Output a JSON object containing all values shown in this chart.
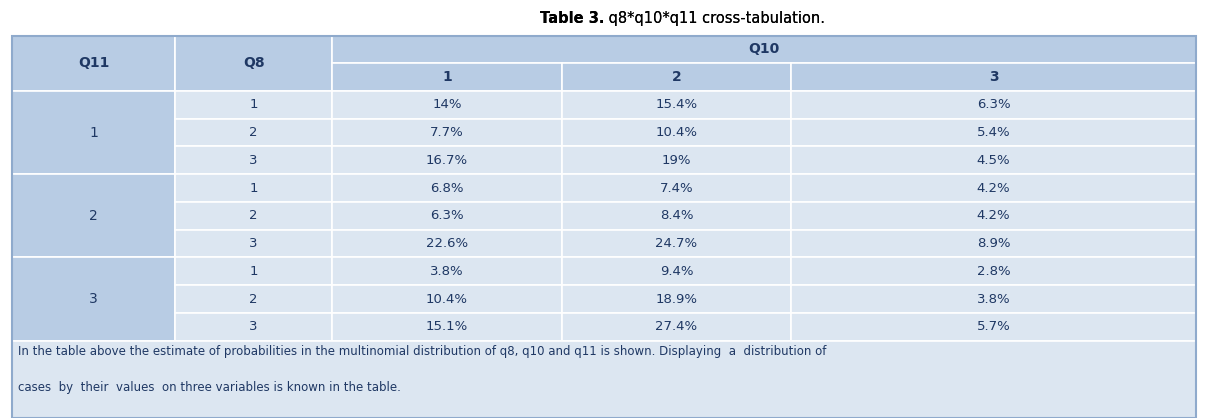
{
  "title_bold": "Table 3.",
  "title_normal": " q8*q10*q11 cross-tabulation.",
  "header_bg": "#b8cce4",
  "row_bg": "#dce6f1",
  "border_color": "#ffffff",
  "text_color": "#1f3864",
  "data": [
    [
      "1",
      "14%",
      "15.4%",
      "6.3%"
    ],
    [
      "2",
      "7.7%",
      "10.4%",
      "5.4%"
    ],
    [
      "3",
      "16.7%",
      "19%",
      "4.5%"
    ],
    [
      "1",
      "6.8%",
      "7.4%",
      "4.2%"
    ],
    [
      "2",
      "6.3%",
      "8.4%",
      "4.2%"
    ],
    [
      "3",
      "22.6%",
      "24.7%",
      "8.9%"
    ],
    [
      "1",
      "3.8%",
      "9.4%",
      "2.8%"
    ],
    [
      "2",
      "10.4%",
      "18.9%",
      "3.8%"
    ],
    [
      "3",
      "15.1%",
      "27.4%",
      "5.7%"
    ]
  ],
  "q11_vals": [
    "1",
    "2",
    "3"
  ],
  "footer_line1": "In the table above the estimate of probabilities in the multinomial distribution of q8, q10 and q11 is shown. Displaying  a  distribution of",
  "footer_line2": "cases  by  their  values  on three variables is known in the table.",
  "figsize": [
    12.08,
    4.18
  ],
  "dpi": 100
}
